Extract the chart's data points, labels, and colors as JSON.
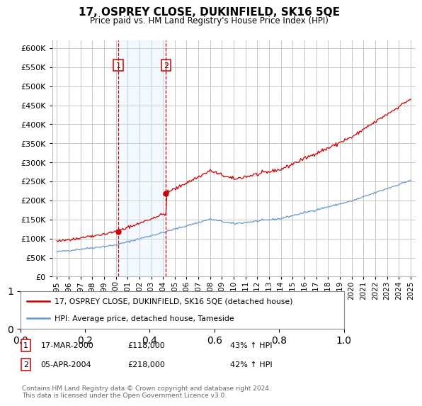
{
  "title": "17, OSPREY CLOSE, DUKINFIELD, SK16 5QE",
  "subtitle": "Price paid vs. HM Land Registry's House Price Index (HPI)",
  "legend_line1": "17, OSPREY CLOSE, DUKINFIELD, SK16 5QE (detached house)",
  "legend_line2": "HPI: Average price, detached house, Tameside",
  "sale1_date": "17-MAR-2000",
  "sale1_price": "£118,000",
  "sale1_pct": "43% ↑ HPI",
  "sale2_date": "05-APR-2004",
  "sale2_price": "£218,000",
  "sale2_pct": "42% ↑ HPI",
  "footer": "Contains HM Land Registry data © Crown copyright and database right 2024.\nThis data is licensed under the Open Government Licence v3.0.",
  "ylim": [
    0,
    620000
  ],
  "yticks": [
    0,
    50000,
    100000,
    150000,
    200000,
    250000,
    300000,
    350000,
    400000,
    450000,
    500000,
    550000,
    600000
  ],
  "sale1_x": 2000.21,
  "sale2_x": 2004.26,
  "red_line_color": "#cc0000",
  "blue_line_color": "#6699cc",
  "shade_color": "#ddeeff",
  "marker_box_color": "#cc0000",
  "grid_color": "#bbbbbb",
  "background_color": "#ffffff"
}
